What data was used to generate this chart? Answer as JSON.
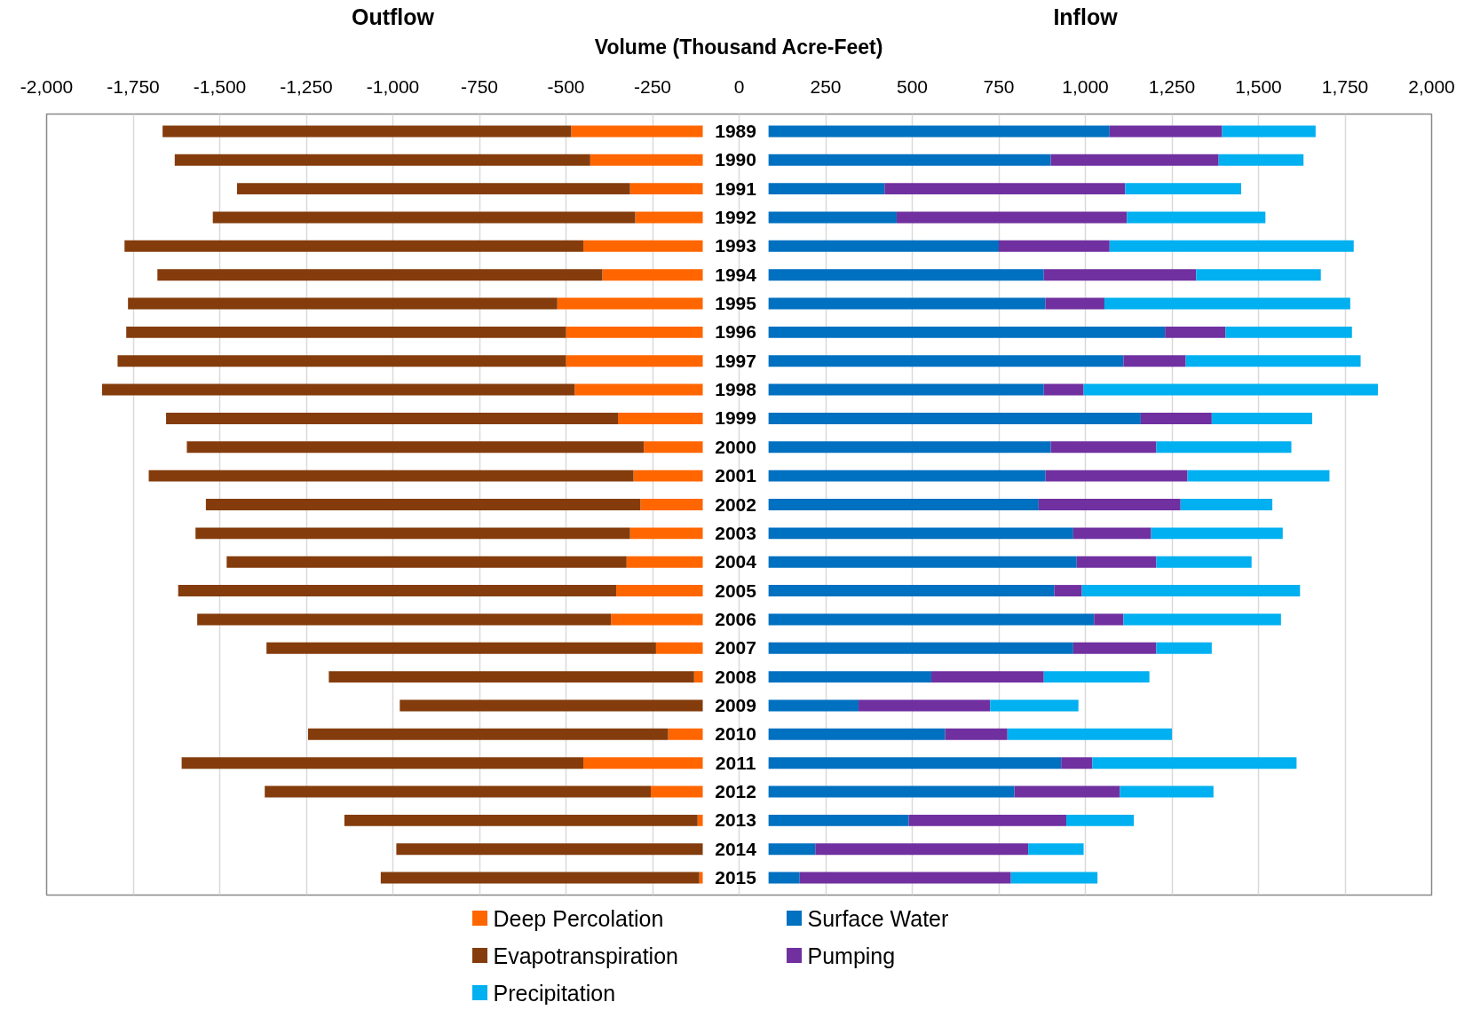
{
  "chart_data": {
    "type": "bar",
    "orientation": "horizontal",
    "xlabel": "Volume (Thousand Acre-Feet)",
    "annotations": [
      "Outflow",
      "Inflow"
    ],
    "categories": [
      "1989",
      "1990",
      "1991",
      "1992",
      "1993",
      "1994",
      "1995",
      "1996",
      "1997",
      "1998",
      "1999",
      "2000",
      "2001",
      "2002",
      "2003",
      "2004",
      "2005",
      "2006",
      "2007",
      "2008",
      "2009",
      "2010",
      "2011",
      "2012",
      "2013",
      "2014",
      "2015"
    ],
    "series": [
      {
        "name": "Deep Percolation",
        "color": "#ff6600",
        "base": [
          -105,
          -105,
          -105,
          -105,
          -105,
          -105,
          -105,
          -105,
          -105,
          -105,
          -105,
          -105,
          -105,
          -105,
          -105,
          -105,
          -105,
          -105,
          -105,
          -105,
          null,
          -105,
          -105,
          -105,
          -105,
          null,
          -105
        ],
        "values": [
          -380,
          -325,
          -210,
          -195,
          -345,
          -290,
          -420,
          -395,
          -395,
          -370,
          -245,
          -170,
          -200,
          -180,
          -210,
          -220,
          -250,
          -265,
          -135,
          -25,
          0,
          -100,
          -345,
          -150,
          -15,
          0,
          -10
        ]
      },
      {
        "name": "Surface Water",
        "color": "#0070c0",
        "base": [
          85,
          85,
          85,
          85,
          85,
          85,
          85,
          85,
          85,
          85,
          85,
          85,
          85,
          85,
          85,
          85,
          85,
          85,
          85,
          85,
          85,
          85,
          85,
          85,
          85,
          85,
          85
        ],
        "values": [
          985,
          815,
          335,
          370,
          665,
          795,
          800,
          1145,
          1025,
          795,
          1075,
          815,
          800,
          780,
          880,
          890,
          825,
          940,
          880,
          470,
          260,
          510,
          845,
          710,
          405,
          135,
          90
        ]
      },
      {
        "name": "Evapotranspiration",
        "color": "#843c0c",
        "base": [
          -485,
          -430,
          -315,
          -300,
          -450,
          -395,
          -525,
          -500,
          -500,
          -475,
          -350,
          -275,
          -305,
          -285,
          -315,
          -325,
          -355,
          -370,
          -240,
          -130,
          -105,
          -205,
          -450,
          -255,
          -120,
          -105,
          -115
        ],
        "values": [
          -1180,
          -1200,
          -1135,
          -1220,
          -1325,
          -1285,
          -1240,
          -1270,
          -1295,
          -1365,
          -1305,
          -1320,
          -1400,
          -1255,
          -1255,
          -1155,
          -1265,
          -1195,
          -1125,
          -1055,
          -875,
          -1040,
          -1160,
          -1115,
          -1020,
          -885,
          -920
        ]
      },
      {
        "name": "Pumping",
        "color": "#7030a0",
        "base": [
          1070,
          900,
          420,
          455,
          750,
          880,
          885,
          1230,
          1110,
          880,
          1160,
          900,
          885,
          865,
          965,
          975,
          910,
          1025,
          965,
          555,
          345,
          595,
          930,
          795,
          490,
          220,
          175
        ],
        "values": [
          325,
          485,
          695,
          665,
          320,
          440,
          170,
          175,
          180,
          115,
          205,
          305,
          410,
          410,
          225,
          230,
          80,
          85,
          240,
          325,
          380,
          180,
          90,
          305,
          455,
          615,
          610
        ]
      },
      {
        "name": "Precipitation",
        "color": "#00b0f0",
        "base": [
          1395,
          1385,
          1115,
          1120,
          1070,
          1320,
          1055,
          1405,
          1290,
          995,
          1365,
          1205,
          1295,
          1275,
          1190,
          1205,
          990,
          1110,
          1205,
          880,
          725,
          775,
          1020,
          1100,
          945,
          835,
          785
        ],
        "values": [
          270,
          245,
          335,
          400,
          705,
          360,
          710,
          365,
          505,
          850,
          290,
          390,
          410,
          265,
          380,
          275,
          630,
          455,
          160,
          305,
          255,
          475,
          590,
          270,
          195,
          160,
          250
        ]
      }
    ],
    "xlim": [
      -2000,
      2000
    ],
    "xticks": [
      {
        "value": -2000,
        "label": "-2,000"
      },
      {
        "value": -1750,
        "label": "-1,750"
      },
      {
        "value": -1500,
        "label": "-1,500"
      },
      {
        "value": -1250,
        "label": "-1,250"
      },
      {
        "value": -1000,
        "label": "-1,000"
      },
      -750,
      -500,
      -250,
      0,
      250,
      500,
      750,
      {
        "value": 1000,
        "label": "1,000"
      },
      {
        "value": 1250,
        "label": "1,250"
      },
      {
        "value": 1500,
        "label": "1,500"
      },
      {
        "value": 1750,
        "label": "1,750"
      },
      {
        "value": 2000,
        "label": "2,000"
      }
    ],
    "grid": "x",
    "legend": "bottom"
  }
}
